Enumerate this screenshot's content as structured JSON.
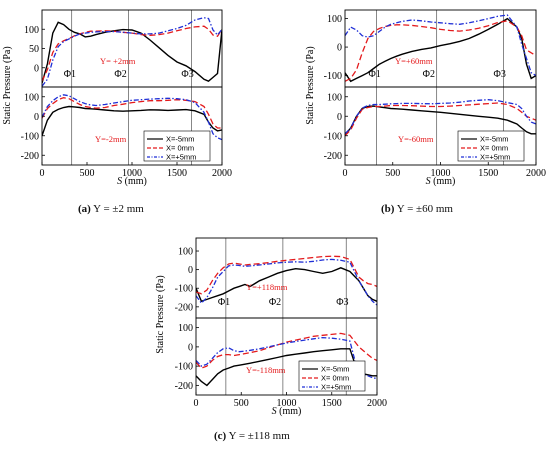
{
  "axes": {
    "xlabel_italic": "S",
    "xlabel_unit": " (mm)",
    "ylabel": "Static Pressure (Pa)",
    "x_ticks": [
      "0",
      "500",
      "1000",
      "1500",
      "2000"
    ]
  },
  "legend": [
    "X=-5mm",
    "X= 0mm",
    "X=+5mm"
  ],
  "markers": [
    "Φ1",
    "Φ2",
    "Φ3"
  ],
  "captions": [
    {
      "label": "(a)",
      "text": "Y = ±2 mm"
    },
    {
      "label": "(b)",
      "text": "Y = ±60 mm"
    },
    {
      "label": "(c)",
      "text": "Y = ±118 mm"
    }
  ],
  "chart_data": [
    {
      "type": "line",
      "panel": "a-top",
      "annotation": "Y= +2mm",
      "xlim": [
        0,
        2000
      ],
      "ylim": [
        -50,
        150
      ],
      "yticks": [
        0,
        50,
        100
      ],
      "vlines": [
        330,
        960,
        1660
      ],
      "x": [
        0,
        60,
        120,
        180,
        240,
        300,
        360,
        420,
        480,
        540,
        600,
        700,
        800,
        900,
        1000,
        1100,
        1200,
        1300,
        1400,
        1500,
        1600,
        1700,
        1800,
        1850,
        1900,
        1950,
        2000
      ],
      "series": [
        {
          "name": "X=-5mm",
          "color": "#000000",
          "y": [
            -40,
            10,
            90,
            118,
            112,
            100,
            92,
            88,
            80,
            82,
            86,
            92,
            96,
            99,
            98,
            90,
            72,
            52,
            32,
            15,
            5,
            -10,
            -30,
            -35,
            -25,
            -15,
            100
          ]
        },
        {
          "name": "X= 0mm",
          "color": "#e41a1c",
          "y": [
            -35,
            -5,
            40,
            62,
            70,
            76,
            83,
            88,
            92,
            95,
            95,
            96,
            95,
            92,
            90,
            86,
            84,
            86,
            90,
            96,
            102,
            106,
            108,
            100,
            85,
            82,
            100
          ]
        },
        {
          "name": "X=+5mm",
          "color": "#1f2fd6",
          "y": [
            -48,
            -30,
            20,
            55,
            68,
            75,
            82,
            88,
            90,
            92,
            93,
            94,
            94,
            92,
            90,
            88,
            88,
            90,
            96,
            102,
            110,
            124,
            130,
            128,
            98,
            85,
            100
          ]
        }
      ]
    },
    {
      "type": "line",
      "panel": "a-bottom",
      "annotation": "Y=-2mm",
      "xlim": [
        0,
        2000
      ],
      "ylim": [
        -250,
        150
      ],
      "yticks": [
        -200,
        -100,
        0,
        100
      ],
      "vlines": [
        330,
        960,
        1660
      ],
      "x": [
        0,
        60,
        120,
        180,
        240,
        300,
        360,
        420,
        480,
        540,
        600,
        700,
        800,
        900,
        1000,
        1100,
        1200,
        1300,
        1400,
        1500,
        1600,
        1700,
        1800,
        1850,
        1900,
        1950,
        2000
      ],
      "series": [
        {
          "name": "X=-5mm",
          "color": "#000000",
          "y": [
            -100,
            -20,
            20,
            35,
            45,
            50,
            48,
            45,
            40,
            38,
            36,
            32,
            28,
            26,
            28,
            30,
            33,
            32,
            30,
            32,
            34,
            28,
            10,
            -30,
            -60,
            -75,
            -70
          ]
        },
        {
          "name": "X= 0mm",
          "color": "#e41a1c",
          "y": [
            -10,
            40,
            65,
            85,
            95,
            90,
            75,
            60,
            50,
            45,
            42,
            45,
            55,
            62,
            70,
            75,
            80,
            80,
            82,
            85,
            82,
            75,
            50,
            10,
            -40,
            -60,
            -60
          ]
        },
        {
          "name": "X=+5mm",
          "color": "#1f2fd6",
          "y": [
            -5,
            50,
            80,
            100,
            110,
            105,
            90,
            75,
            65,
            58,
            55,
            60,
            68,
            75,
            82,
            85,
            88,
            90,
            92,
            90,
            85,
            70,
            20,
            -30,
            -90,
            -110,
            -120
          ]
        }
      ]
    },
    {
      "type": "line",
      "panel": "b-top",
      "annotation": "Y=+60mm",
      "xlim": [
        0,
        2000
      ],
      "ylim": [
        -140,
        130
      ],
      "yticks": [
        -100,
        0,
        100
      ],
      "vlines": [
        330,
        960,
        1660
      ],
      "x": [
        0,
        60,
        120,
        180,
        240,
        300,
        360,
        420,
        480,
        540,
        600,
        700,
        800,
        900,
        1000,
        1100,
        1200,
        1300,
        1400,
        1500,
        1600,
        1700,
        1800,
        1850,
        1900,
        1950,
        2000
      ],
      "series": [
        {
          "name": "X=-5mm",
          "color": "#000000",
          "y": [
            -90,
            -120,
            -110,
            -100,
            -90,
            -75,
            -60,
            -50,
            -40,
            -32,
            -25,
            -15,
            -8,
            -3,
            5,
            12,
            20,
            30,
            45,
            62,
            80,
            100,
            70,
            30,
            -60,
            -110,
            -100
          ]
        },
        {
          "name": "X= 0mm",
          "color": "#e41a1c",
          "y": [
            -120,
            -110,
            -80,
            -20,
            30,
            55,
            65,
            72,
            76,
            78,
            78,
            76,
            72,
            68,
            62,
            58,
            56,
            60,
            66,
            75,
            86,
            92,
            70,
            40,
            -10,
            -20,
            -30
          ]
        },
        {
          "name": "X=+5mm",
          "color": "#1f2fd6",
          "y": [
            40,
            70,
            60,
            40,
            35,
            40,
            55,
            70,
            80,
            85,
            90,
            95,
            92,
            88,
            85,
            82,
            80,
            85,
            92,
            100,
            108,
            112,
            70,
            10,
            -40,
            -90,
            -100
          ]
        }
      ]
    },
    {
      "type": "line",
      "panel": "b-bottom",
      "annotation": "Y=-60mm",
      "xlim": [
        0,
        2000
      ],
      "ylim": [
        -250,
        150
      ],
      "yticks": [
        -200,
        -100,
        0,
        100
      ],
      "vlines": [
        330,
        960,
        1660
      ],
      "x": [
        0,
        60,
        120,
        180,
        240,
        300,
        360,
        420,
        480,
        540,
        600,
        700,
        800,
        900,
        1000,
        1100,
        1200,
        1300,
        1400,
        1500,
        1600,
        1700,
        1800,
        1850,
        1900,
        1950,
        2000
      ],
      "series": [
        {
          "name": "X=-5mm",
          "color": "#000000",
          "y": [
            -95,
            -60,
            0,
            40,
            50,
            52,
            48,
            44,
            40,
            38,
            36,
            32,
            28,
            24,
            20,
            15,
            10,
            5,
            0,
            -5,
            -10,
            -20,
            -40,
            -60,
            -80,
            -90,
            -90
          ]
        },
        {
          "name": "X= 0mm",
          "color": "#e41a1c",
          "y": [
            -100,
            -70,
            -10,
            35,
            45,
            50,
            50,
            52,
            55,
            55,
            55,
            54,
            52,
            50,
            50,
            52,
            55,
            58,
            62,
            65,
            68,
            60,
            40,
            20,
            0,
            -10,
            -20
          ]
        },
        {
          "name": "X=+5mm",
          "color": "#1f2fd6",
          "y": [
            -90,
            -60,
            0,
            42,
            55,
            60,
            60,
            62,
            64,
            65,
            66,
            66,
            65,
            64,
            66,
            68,
            72,
            78,
            82,
            85,
            80,
            70,
            60,
            40,
            0,
            -30,
            -40
          ]
        }
      ]
    },
    {
      "type": "line",
      "panel": "c-top",
      "annotation": "Y=+118mm",
      "xlim": [
        0,
        2000
      ],
      "ylim": [
        -260,
        170
      ],
      "yticks": [
        -200,
        -100,
        0,
        100
      ],
      "vlines": [
        330,
        960,
        1660
      ],
      "x": [
        0,
        60,
        120,
        180,
        240,
        300,
        360,
        420,
        480,
        540,
        600,
        700,
        800,
        900,
        1000,
        1100,
        1200,
        1300,
        1400,
        1500,
        1600,
        1700,
        1800,
        1850,
        1900,
        1950,
        2000
      ],
      "series": [
        {
          "name": "X=-5mm",
          "color": "#000000",
          "y": [
            -100,
            -170,
            -160,
            -150,
            -140,
            -130,
            -115,
            -100,
            -90,
            -80,
            -90,
            -60,
            -40,
            -20,
            -5,
            5,
            0,
            -10,
            -20,
            -10,
            10,
            -10,
            -60,
            -100,
            -140,
            -160,
            -170
          ]
        },
        {
          "name": "X= 0mm",
          "color": "#e41a1c",
          "y": [
            -120,
            -130,
            -110,
            -60,
            -20,
            10,
            30,
            35,
            30,
            25,
            28,
            32,
            38,
            45,
            50,
            55,
            60,
            65,
            70,
            72,
            70,
            55,
            -40,
            -60,
            -75,
            -80,
            -90
          ]
        },
        {
          "name": "X=+5mm",
          "color": "#1f2fd6",
          "y": [
            -140,
            -180,
            -150,
            -100,
            -40,
            -10,
            20,
            25,
            22,
            18,
            20,
            25,
            30,
            36,
            40,
            42,
            40,
            45,
            52,
            55,
            50,
            40,
            -60,
            -100,
            -140,
            -170,
            -190
          ]
        }
      ]
    },
    {
      "type": "line",
      "panel": "c-bottom",
      "annotation": "Y=-118mm",
      "xlim": [
        0,
        2000
      ],
      "ylim": [
        -250,
        150
      ],
      "yticks": [
        -200,
        -100,
        0,
        100
      ],
      "vlines": [
        330,
        960,
        1660
      ],
      "x": [
        0,
        60,
        120,
        180,
        240,
        300,
        360,
        420,
        480,
        540,
        600,
        700,
        800,
        900,
        1000,
        1100,
        1200,
        1300,
        1400,
        1500,
        1600,
        1700,
        1800,
        1850,
        1900,
        1950,
        2000
      ],
      "series": [
        {
          "name": "X=-5mm",
          "color": "#000000",
          "y": [
            -150,
            -180,
            -200,
            -170,
            -140,
            -120,
            -110,
            -100,
            -95,
            -90,
            -85,
            -75,
            -65,
            -55,
            -45,
            -38,
            -32,
            -25,
            -20,
            -15,
            -10,
            -10,
            -150,
            -140,
            -145,
            -150,
            -150
          ]
        },
        {
          "name": "X= 0mm",
          "color": "#e41a1c",
          "y": [
            -80,
            -110,
            -100,
            -70,
            -50,
            -40,
            -40,
            -45,
            -40,
            -35,
            -30,
            -20,
            -5,
            10,
            25,
            35,
            45,
            55,
            60,
            65,
            70,
            60,
            0,
            -20,
            -40,
            -60,
            -70
          ]
        },
        {
          "name": "X=+5mm",
          "color": "#1f2fd6",
          "y": [
            -70,
            -100,
            -90,
            -60,
            -30,
            -10,
            -5,
            -20,
            -25,
            -22,
            -18,
            -10,
            0,
            10,
            20,
            28,
            35,
            42,
            48,
            45,
            40,
            30,
            -150,
            -145,
            -150,
            -160,
            -165
          ]
        }
      ]
    }
  ]
}
